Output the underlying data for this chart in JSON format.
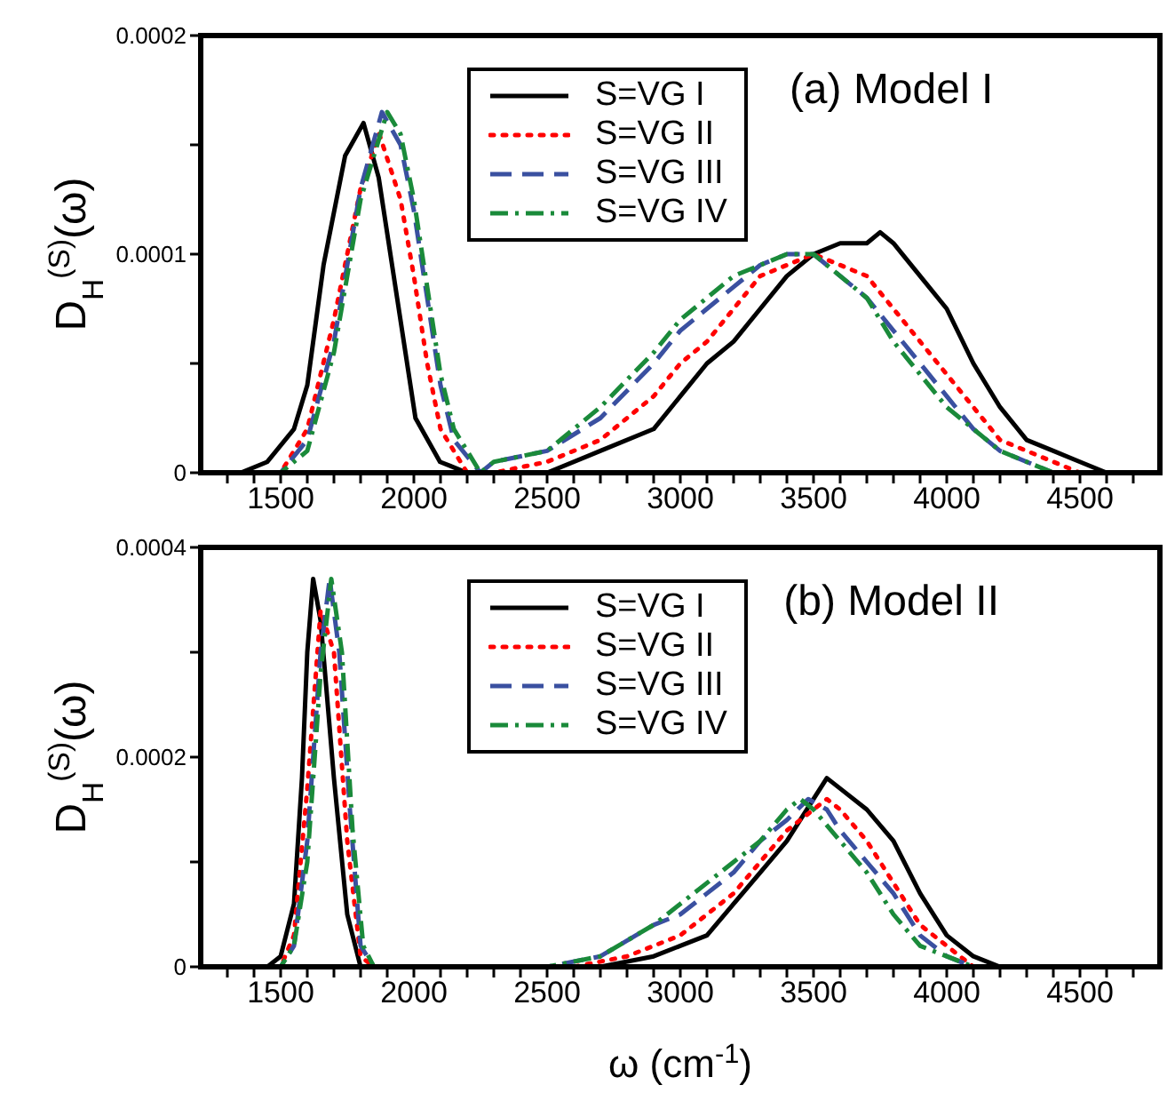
{
  "chart_data": [
    {
      "type": "line",
      "ylabel": "D$_{H}$$^{(S)}$(ω)",
      "annotations": [
        "(a) Model I"
      ],
      "legend": "top",
      "marker": "none",
      "xlim": [
        1200,
        4800
      ],
      "ylim": [
        0,
        0.0002
      ],
      "xticks": [
        {
          "value": 1300,
          "label": null
        },
        {
          "value": 1400,
          "label": null
        },
        1500,
        {
          "value": 1600,
          "label": null
        },
        {
          "value": 1700,
          "label": null
        },
        {
          "value": 1800,
          "label": null
        },
        {
          "value": 1900,
          "label": null
        },
        2000,
        {
          "value": 2100,
          "label": null
        },
        {
          "value": 2200,
          "label": null
        },
        {
          "value": 2300,
          "label": null
        },
        {
          "value": 2400,
          "label": null
        },
        2500,
        {
          "value": 2600,
          "label": null
        },
        {
          "value": 2700,
          "label": null
        },
        {
          "value": 2800,
          "label": null
        },
        {
          "value": 2900,
          "label": null
        },
        3000,
        {
          "value": 3100,
          "label": null
        },
        {
          "value": 3200,
          "label": null
        },
        {
          "value": 3300,
          "label": null
        },
        {
          "value": 3400,
          "label": null
        },
        3500,
        {
          "value": 3600,
          "label": null
        },
        {
          "value": 3700,
          "label": null
        },
        {
          "value": 3800,
          "label": null
        },
        {
          "value": 3900,
          "label": null
        },
        4000,
        {
          "value": 4100,
          "label": null
        },
        {
          "value": 4200,
          "label": null
        },
        {
          "value": 4300,
          "label": null
        },
        {
          "value": 4400,
          "label": null
        },
        4500,
        {
          "value": 4600,
          "label": null
        },
        {
          "value": 4700,
          "label": null
        }
      ],
      "yticks": [
        0,
        {
          "value": 5e-05,
          "label": null
        },
        0.0001,
        {
          "value": 0.00015,
          "label": null
        },
        0.0002
      ],
      "series": [
        {
          "name": "S=VG I",
          "color": "#000000",
          "line_style": "solid",
          "x": [
            1200,
            1350,
            1450,
            1550,
            1600,
            1661,
            1742,
            1811,
            1868,
            1937,
            2006,
            2098,
            2200,
            2300,
            2500,
            2700,
            2900,
            3000,
            3100,
            3200,
            3300,
            3400,
            3500,
            3600,
            3700,
            3750,
            3800,
            3900,
            4000,
            4100,
            4200,
            4300,
            4400,
            4500,
            4600,
            4700,
            4800
          ],
          "values": [
            0,
            0,
            5e-06,
            2e-05,
            4e-05,
            9.5e-05,
            0.000145,
            0.00016,
            0.000135,
            8e-05,
            2.5e-05,
            5e-06,
            0,
            0,
            0,
            1e-05,
            2e-05,
            3.5e-05,
            5e-05,
            6e-05,
            7.5e-05,
            9e-05,
            0.0001,
            0.000105,
            0.000105,
            0.00011,
            0.000105,
            9e-05,
            7.5e-05,
            5e-05,
            3e-05,
            1.5e-05,
            1e-05,
            5e-06,
            0,
            0,
            0
          ]
        },
        {
          "name": "S=VG II",
          "color": "#ff0000",
          "line_style": "dotted",
          "x": [
            1200,
            1400,
            1500,
            1600,
            1700,
            1800,
            1870,
            1950,
            2000,
            2050,
            2100,
            2200,
            2300,
            2500,
            2700,
            2900,
            3000,
            3100,
            3200,
            3300,
            3400,
            3500,
            3600,
            3700,
            3800,
            3900,
            4000,
            4100,
            4200,
            4300,
            4400,
            4500,
            4800
          ],
          "values": [
            0,
            0,
            0,
            2e-05,
            7e-05,
            0.00013,
            0.000155,
            0.000125,
            9e-05,
            5e-05,
            2e-05,
            0,
            0,
            5e-06,
            1.5e-05,
            3.5e-05,
            5e-05,
            6e-05,
            7.5e-05,
            9e-05,
            9.5e-05,
            0.0001,
            9.5e-05,
            9e-05,
            7.5e-05,
            6e-05,
            4.5e-05,
            3e-05,
            1.5e-05,
            1e-05,
            5e-06,
            0,
            0
          ]
        },
        {
          "name": "S=VG III",
          "color": "#3a50a0",
          "line_style": "dashed",
          "x": [
            1200,
            1400,
            1500,
            1600,
            1700,
            1800,
            1880,
            1950,
            2000,
            2050,
            2100,
            2150,
            2250,
            2300,
            2500,
            2700,
            2900,
            3000,
            3100,
            3200,
            3300,
            3400,
            3500,
            3600,
            3700,
            3800,
            3900,
            4000,
            4100,
            4200,
            4300,
            4400,
            4800
          ],
          "values": [
            0,
            0,
            0,
            1.5e-05,
            6e-05,
            0.00013,
            0.000165,
            0.00015,
            0.00012,
            8e-05,
            4e-05,
            1.5e-05,
            0,
            5e-06,
            1e-05,
            2.5e-05,
            5e-05,
            6.5e-05,
            7.5e-05,
            8.5e-05,
            9.5e-05,
            0.0001,
            0.0001,
            9e-05,
            8e-05,
            6.5e-05,
            5e-05,
            3.5e-05,
            2e-05,
            1e-05,
            5e-06,
            0,
            0
          ]
        },
        {
          "name": "S=VG IV",
          "color": "#1a8a3a",
          "line_style": "dashdot",
          "x": [
            1200,
            1400,
            1500,
            1600,
            1700,
            1800,
            1900,
            1950,
            2000,
            2050,
            2100,
            2150,
            2250,
            2300,
            2500,
            2700,
            2900,
            3000,
            3100,
            3200,
            3300,
            3400,
            3500,
            3600,
            3700,
            3800,
            3900,
            4000,
            4100,
            4200,
            4300,
            4400,
            4800
          ],
          "values": [
            0,
            0,
            0,
            1e-05,
            5.5e-05,
            0.000125,
            0.000165,
            0.000155,
            0.000125,
            8.5e-05,
            4.5e-05,
            2e-05,
            0,
            5e-06,
            1e-05,
            3e-05,
            5.5e-05,
            7e-05,
            8e-05,
            9e-05,
            9.5e-05,
            0.0001,
            0.0001,
            9e-05,
            8e-05,
            6e-05,
            4.5e-05,
            3e-05,
            2e-05,
            1e-05,
            5e-06,
            0,
            0
          ]
        }
      ]
    },
    {
      "type": "line",
      "xlabel": "ω (cm$^{-1}$)",
      "ylabel": "D$_{H}$$^{(S)}$(ω)",
      "annotations": [
        "(b) Model II"
      ],
      "legend": "top",
      "marker": "none",
      "xlim": [
        1200,
        4800
      ],
      "ylim": [
        0,
        0.0004
      ],
      "xticks": [
        {
          "value": 1300,
          "label": null
        },
        {
          "value": 1400,
          "label": null
        },
        1500,
        {
          "value": 1600,
          "label": null
        },
        {
          "value": 1700,
          "label": null
        },
        {
          "value": 1800,
          "label": null
        },
        {
          "value": 1900,
          "label": null
        },
        2000,
        {
          "value": 2100,
          "label": null
        },
        {
          "value": 2200,
          "label": null
        },
        {
          "value": 2300,
          "label": null
        },
        {
          "value": 2400,
          "label": null
        },
        2500,
        {
          "value": 2600,
          "label": null
        },
        {
          "value": 2700,
          "label": null
        },
        {
          "value": 2800,
          "label": null
        },
        {
          "value": 2900,
          "label": null
        },
        3000,
        {
          "value": 3100,
          "label": null
        },
        {
          "value": 3200,
          "label": null
        },
        {
          "value": 3300,
          "label": null
        },
        {
          "value": 3400,
          "label": null
        },
        3500,
        {
          "value": 3600,
          "label": null
        },
        {
          "value": 3700,
          "label": null
        },
        {
          "value": 3800,
          "label": null
        },
        {
          "value": 3900,
          "label": null
        },
        4000,
        {
          "value": 4100,
          "label": null
        },
        {
          "value": 4200,
          "label": null
        },
        {
          "value": 4300,
          "label": null
        },
        {
          "value": 4400,
          "label": null
        },
        4500,
        {
          "value": 4600,
          "label": null
        },
        {
          "value": 4700,
          "label": null
        }
      ],
      "yticks": [
        0,
        {
          "value": 0.0001,
          "label": null
        },
        0.0002,
        {
          "value": 0.0003,
          "label": null
        },
        0.0004
      ],
      "series": [
        {
          "name": "S=VG I",
          "color": "#000000",
          "line_style": "solid",
          "x": [
            1200,
            1450,
            1500,
            1550,
            1580,
            1600,
            1622,
            1650,
            1700,
            1750,
            1800,
            1850,
            2700,
            2900,
            3000,
            3100,
            3200,
            3300,
            3400,
            3500,
            3550,
            3600,
            3700,
            3800,
            3900,
            4000,
            4100,
            4200,
            4800
          ],
          "values": [
            0,
            0,
            1e-05,
            6e-05,
            0.00018,
            0.0003,
            0.00037,
            0.00033,
            0.00018,
            5e-05,
            0,
            0,
            0,
            1e-05,
            2e-05,
            3e-05,
            6e-05,
            9e-05,
            0.00012,
            0.00016,
            0.00018,
            0.00017,
            0.00015,
            0.00012,
            7e-05,
            3e-05,
            1e-05,
            0,
            0
          ]
        },
        {
          "name": "S=VG II",
          "color": "#ff0000",
          "line_style": "dotted",
          "x": [
            1200,
            1450,
            1500,
            1550,
            1600,
            1650,
            1700,
            1750,
            1800,
            1850,
            2600,
            2800,
            2900,
            3000,
            3100,
            3200,
            3300,
            3400,
            3500,
            3550,
            3600,
            3700,
            3800,
            3900,
            4000,
            4100,
            4200,
            4800
          ],
          "values": [
            0,
            0,
            0,
            3e-05,
            0.00017,
            0.00034,
            0.0003,
            0.00012,
            1e-05,
            0,
            0,
            1e-05,
            2e-05,
            3e-05,
            5e-05,
            7e-05,
            0.0001,
            0.00013,
            0.00015,
            0.00016,
            0.00015,
            0.00012,
            8e-05,
            4e-05,
            2e-05,
            0,
            0,
            0
          ]
        },
        {
          "name": "S=VG III",
          "color": "#3a50a0",
          "line_style": "dashed",
          "x": [
            1200,
            1450,
            1500,
            1550,
            1600,
            1650,
            1684,
            1720,
            1760,
            1800,
            1850,
            2500,
            2700,
            2900,
            3000,
            3100,
            3200,
            3300,
            3400,
            3480,
            3550,
            3600,
            3700,
            3800,
            3900,
            4000,
            4100,
            4200,
            4800
          ],
          "values": [
            0,
            0,
            0,
            2e-05,
            0.00012,
            0.0003,
            0.00037,
            0.0003,
            0.00015,
            2e-05,
            0,
            0,
            1e-05,
            4e-05,
            5e-05,
            7e-05,
            9e-05,
            0.00012,
            0.00014,
            0.00016,
            0.00015,
            0.00013,
            0.0001,
            7e-05,
            3e-05,
            1e-05,
            0,
            0,
            0
          ]
        },
        {
          "name": "S=VG IV",
          "color": "#1a8a3a",
          "line_style": "dashdot",
          "x": [
            1200,
            1500,
            1550,
            1600,
            1650,
            1690,
            1730,
            1770,
            1810,
            1850,
            2500,
            2700,
            2900,
            3000,
            3100,
            3200,
            3300,
            3400,
            3450,
            3500,
            3600,
            3700,
            3800,
            3900,
            4000,
            4100,
            4800
          ],
          "values": [
            0,
            0,
            2e-05,
            0.0001,
            0.00028,
            0.00037,
            0.0003,
            0.00013,
            2e-05,
            0,
            0,
            1e-05,
            4e-05,
            6e-05,
            8e-05,
            0.0001,
            0.00012,
            0.00015,
            0.00016,
            0.00015,
            0.00012,
            9e-05,
            5e-05,
            2e-05,
            1e-05,
            0,
            0
          ]
        }
      ]
    }
  ]
}
